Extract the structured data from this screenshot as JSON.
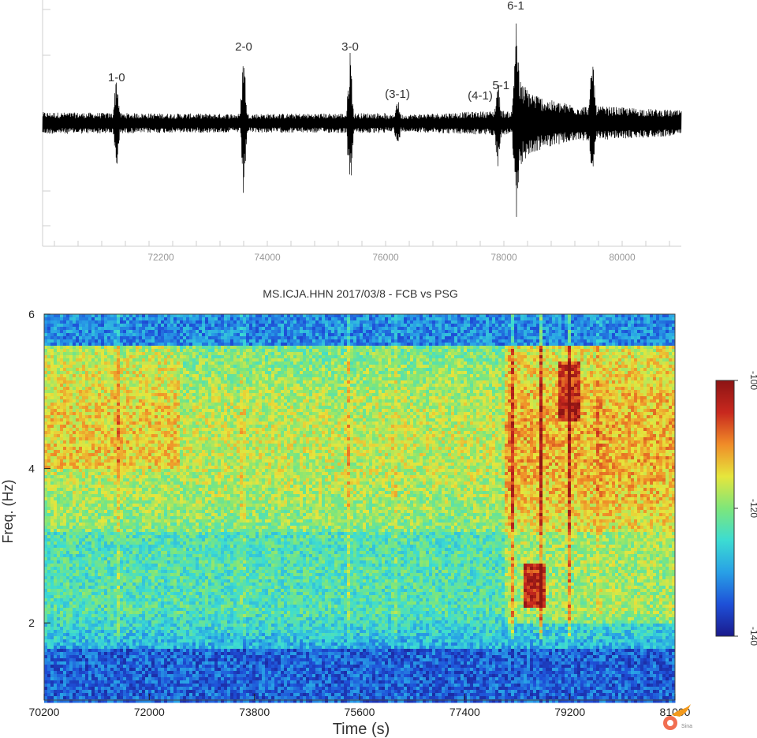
{
  "chart_data": [
    {
      "type": "line",
      "xlabel": "",
      "ylabel": "",
      "xlim": [
        70200,
        81000
      ],
      "x_ticks": [
        "72200",
        "74000",
        "76000",
        "78000",
        "80000"
      ],
      "annotations": [
        {
          "text": "1-0",
          "x": 71450
        },
        {
          "text": "2-0",
          "x": 73600
        },
        {
          "text": "3-0",
          "x": 75400
        },
        {
          "text": "(3-1)",
          "x": 76200
        },
        {
          "text": "(4-1)",
          "x": 77600
        },
        {
          "text": "5-1",
          "x": 77950
        },
        {
          "text": "6-1",
          "x": 78200
        }
      ],
      "bursts": [
        {
          "x": 71450,
          "amplitude": 0.45
        },
        {
          "x": 73600,
          "amplitude": 0.75
        },
        {
          "x": 75400,
          "amplitude": 0.75
        },
        {
          "x": 76200,
          "amplitude": 0.2
        },
        {
          "x": 77900,
          "amplitude": 0.35
        },
        {
          "x": 78200,
          "amplitude": 1.0
        },
        {
          "x": 79500,
          "amplitude": 0.6
        }
      ]
    },
    {
      "type": "heatmap",
      "title": "MS.ICJA.HHN 2017/03/8 - FCB vs PSG",
      "xlabel": "Time (s)",
      "ylabel": "Freq. (Hz)",
      "xlim": [
        70200,
        81000
      ],
      "ylim": [
        1,
        6
      ],
      "x_ticks": [
        "70200",
        "72000",
        "73800",
        "75600",
        "77400",
        "79200",
        "81000"
      ],
      "y_ticks": [
        "2",
        "4",
        "6"
      ],
      "colorbar": {
        "ticks": [
          "-100",
          "-120",
          "-140"
        ],
        "range": [
          -140,
          -100
        ],
        "colors": [
          "#1a1a8c",
          "#1e50d8",
          "#28a0e6",
          "#3cdcd2",
          "#7ee67a",
          "#e6e63c",
          "#f08c28",
          "#c8281e",
          "#8c1414"
        ]
      },
      "event_columns": [
        {
          "x": 71450,
          "strength": 0.55
        },
        {
          "x": 73600,
          "strength": 0.5
        },
        {
          "x": 75400,
          "strength": 0.45
        },
        {
          "x": 76200,
          "strength": 0.35
        },
        {
          "x": 78200,
          "strength": 1.0
        },
        {
          "x": 78700,
          "strength": 0.8
        },
        {
          "x": 79200,
          "strength": 0.75
        },
        {
          "x": 79700,
          "strength": 0.4
        }
      ]
    }
  ],
  "watermark": {
    "text": "Sina"
  }
}
